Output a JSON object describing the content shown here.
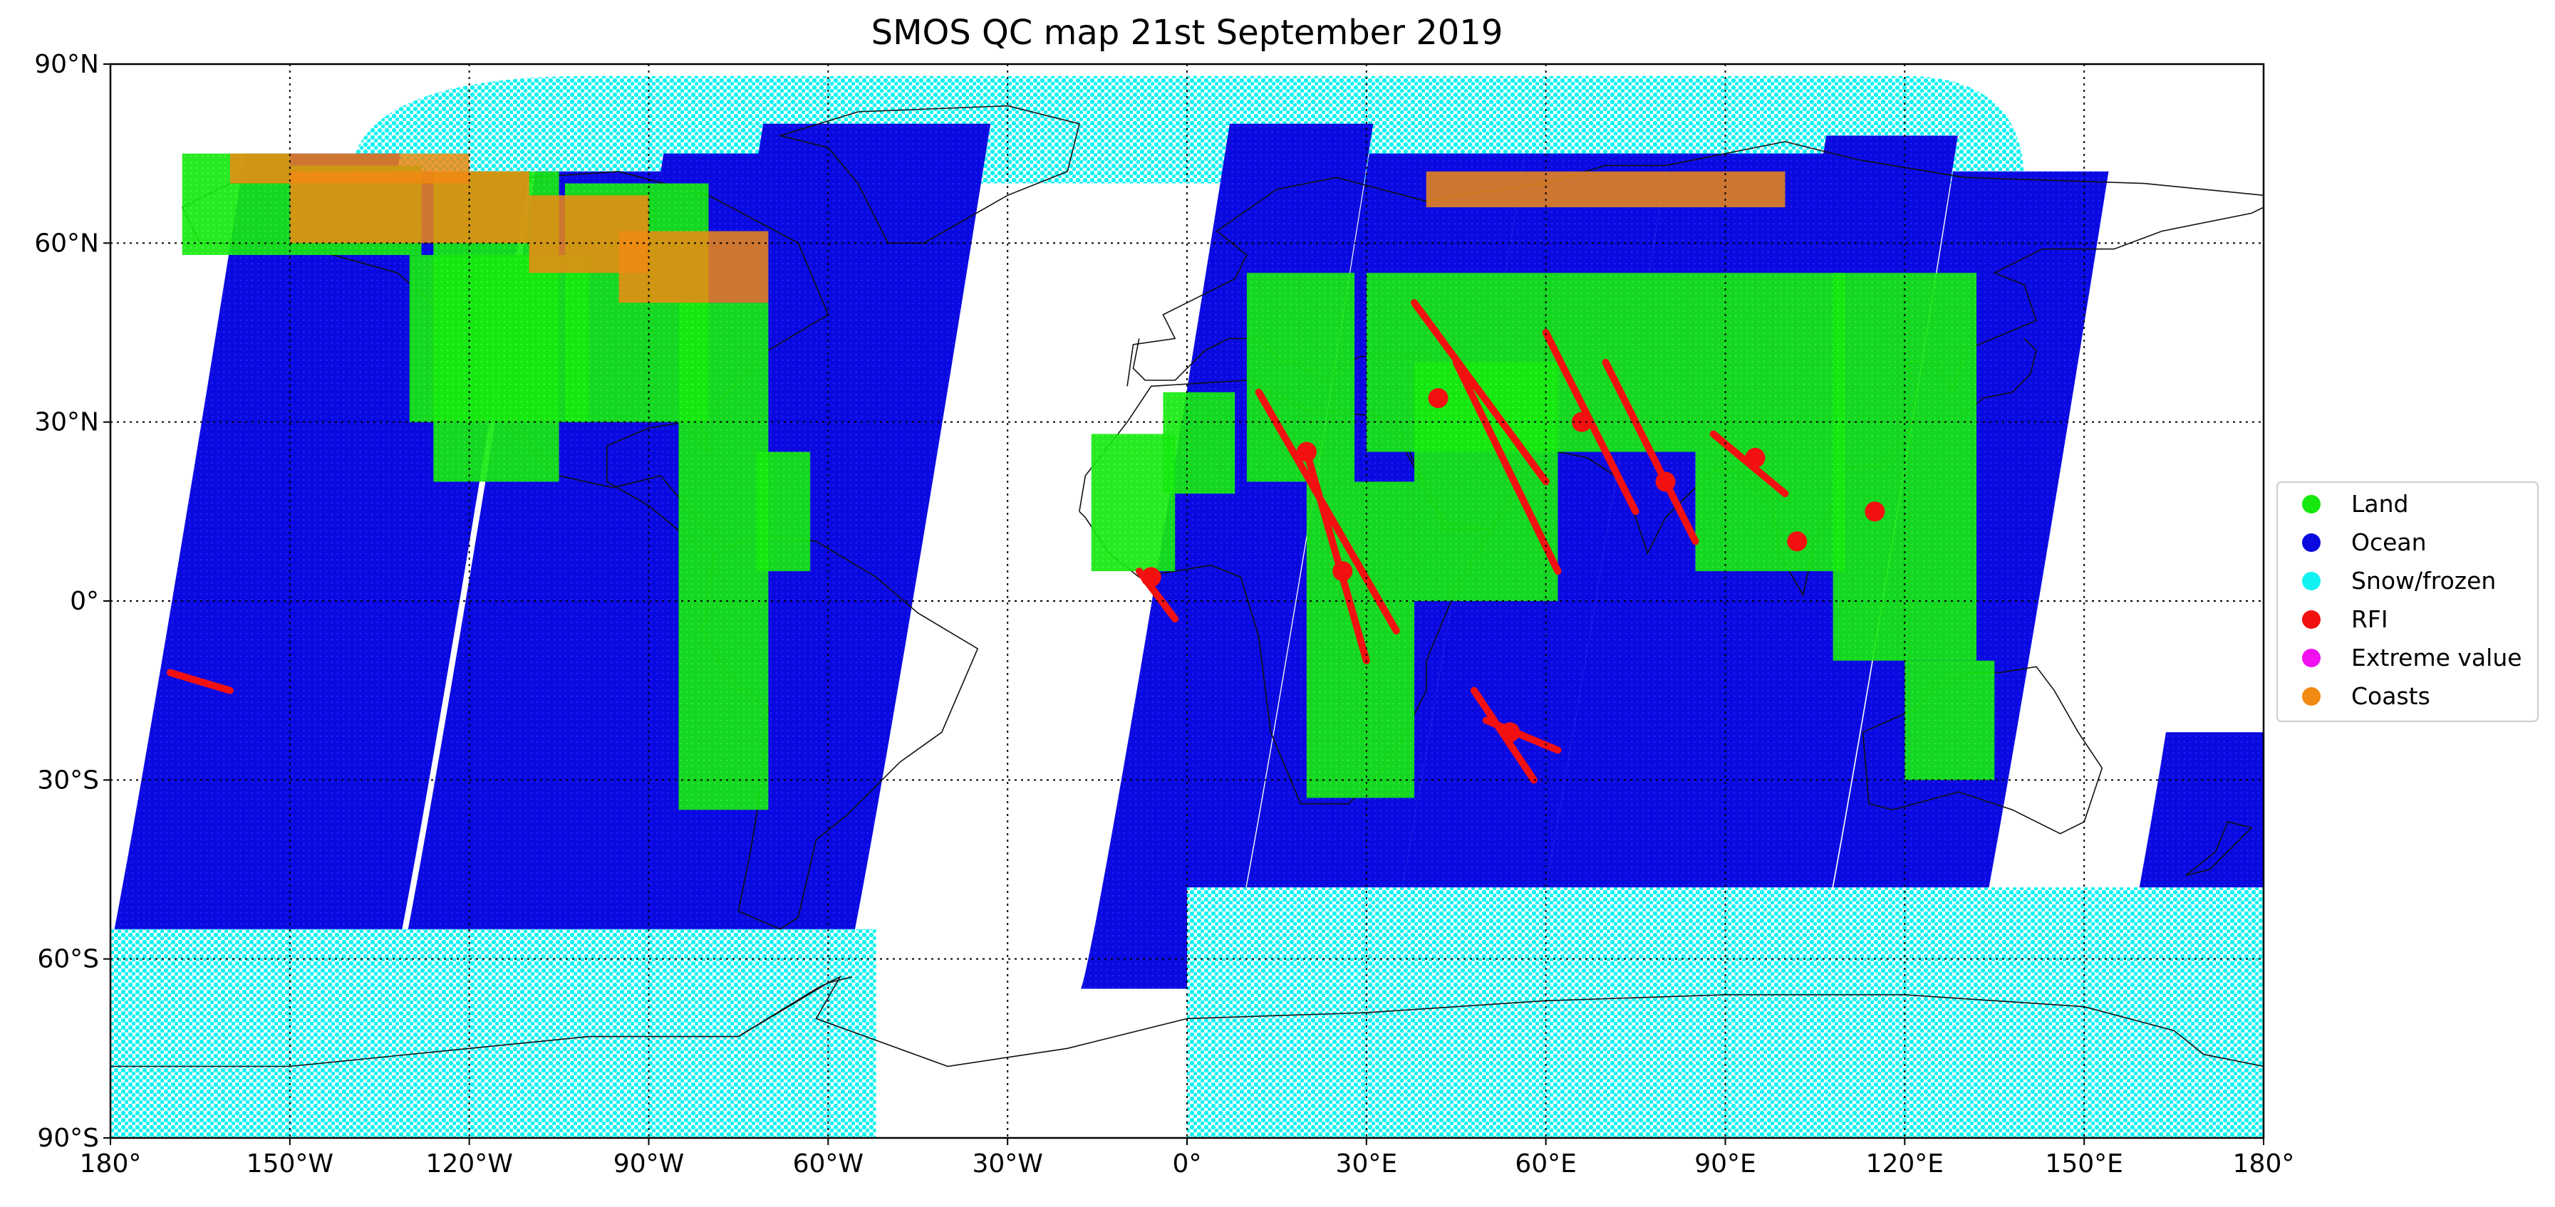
{
  "chart_data": {
    "type": "map",
    "title": "SMOS QC map 21st September 2019",
    "projection": "equirectangular",
    "xlim": [
      -180,
      180
    ],
    "ylim": [
      -90,
      90
    ],
    "grid": true,
    "x_ticks": [
      {
        "value": -180,
        "label": "180°"
      },
      {
        "value": -150,
        "label": "150°W"
      },
      {
        "value": -120,
        "label": "120°W"
      },
      {
        "value": -90,
        "label": "90°W"
      },
      {
        "value": -60,
        "label": "60°W"
      },
      {
        "value": -30,
        "label": "30°W"
      },
      {
        "value": 0,
        "label": "0°"
      },
      {
        "value": 30,
        "label": "30°E"
      },
      {
        "value": 60,
        "label": "60°E"
      },
      {
        "value": 90,
        "label": "90°E"
      },
      {
        "value": 120,
        "label": "120°E"
      },
      {
        "value": 150,
        "label": "150°E"
      },
      {
        "value": 180,
        "label": "180°"
      }
    ],
    "y_ticks": [
      {
        "value": 90,
        "label": "90°N"
      },
      {
        "value": 60,
        "label": "60°N"
      },
      {
        "value": 30,
        "label": "30°N"
      },
      {
        "value": 0,
        "label": "0°"
      },
      {
        "value": -30,
        "label": "30°S"
      },
      {
        "value": -60,
        "label": "60°S"
      },
      {
        "value": -90,
        "label": "90°S"
      }
    ],
    "legend": {
      "placement": "right",
      "entries": [
        {
          "name": "Land",
          "color": "#16e80f"
        },
        {
          "name": "Ocean",
          "color": "#0a0ae0"
        },
        {
          "name": "Snow/frozen",
          "color": "#12f2f2"
        },
        {
          "name": "RFI",
          "color": "#f21010"
        },
        {
          "name": "Extreme value",
          "color": "#f010f0"
        },
        {
          "name": "Coasts",
          "color": "#f08a12"
        }
      ]
    },
    "swaths": [
      {
        "lon_start": -176,
        "lon_end": -150,
        "lat_top": 75,
        "lat_bottom": -65
      },
      {
        "lon_start": -154,
        "lon_end": -128,
        "lat_top": 72,
        "lat_bottom": -65
      },
      {
        "lon_start": -127,
        "lon_end": -100,
        "lat_top": 72,
        "lat_bottom": -65
      },
      {
        "lon_start": -106,
        "lon_end": -78,
        "lat_top": 75,
        "lat_bottom": -65
      },
      {
        "lon_start": -90,
        "lon_end": -52,
        "lat_top": 80,
        "lat_bottom": -65
      },
      {
        "lon_start": -12,
        "lon_end": 12,
        "lat_top": 80,
        "lat_bottom": -65
      },
      {
        "lon_start": 12,
        "lon_end": 38,
        "lat_top": 75,
        "lat_bottom": -65
      },
      {
        "lon_start": 38,
        "lon_end": 62,
        "lat_top": 75,
        "lat_bottom": -65
      },
      {
        "lon_start": 62,
        "lon_end": 88,
        "lat_top": 75,
        "lat_bottom": -65
      },
      {
        "lon_start": 88,
        "lon_end": 110,
        "lat_top": 78,
        "lat_bottom": -65
      },
      {
        "lon_start": 110,
        "lon_end": 136,
        "lat_top": 72,
        "lat_bottom": -65
      },
      {
        "lon_start": 158,
        "lon_end": 180,
        "lat_top": -22,
        "lat_bottom": -65
      }
    ],
    "arctic_band": {
      "lat_top": 88,
      "lat_bottom": 70
    },
    "antarctic_band": {
      "lat_top": -55,
      "lat_bottom": -90
    }
  }
}
